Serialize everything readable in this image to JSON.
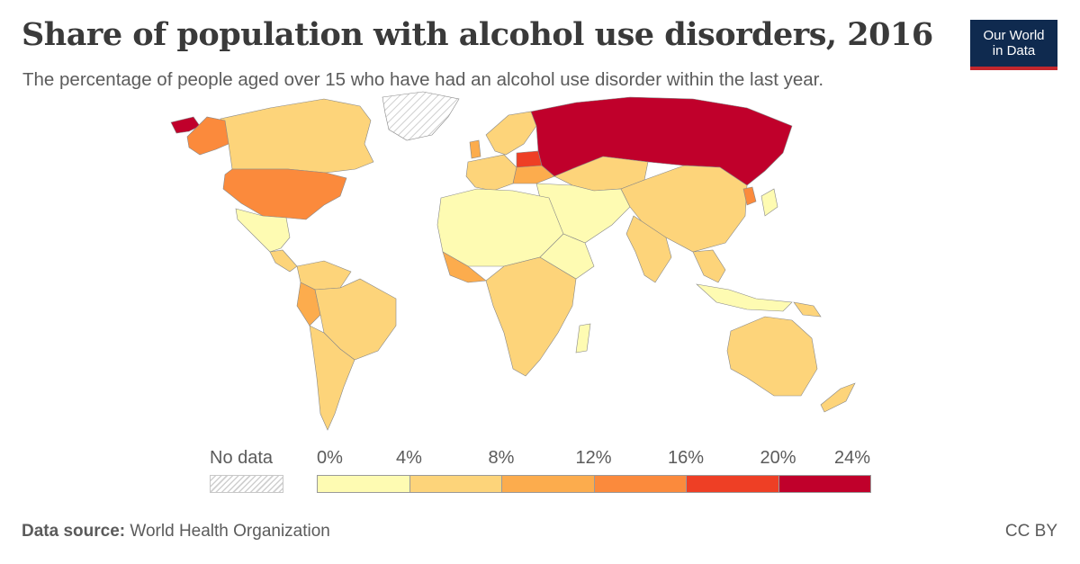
{
  "header": {
    "title": "Share of population with alcohol use disorders, 2016",
    "subtitle": "The percentage of people aged over 15 who have had an alcohol use disorder within the last year."
  },
  "logo": {
    "line1": "Our World",
    "line2": "in Data"
  },
  "legend": {
    "no_data_label": "No data",
    "ticks": [
      "0%",
      "4%",
      "8%",
      "12%",
      "16%",
      "20%",
      "24%"
    ],
    "bin_colors": [
      "#fefbb2",
      "#fdd47a",
      "#fcac4d",
      "#fb8a3c",
      "#ee3f25",
      "#c0002b"
    ]
  },
  "footer": {
    "source_label": "Data source:",
    "source_value": "World Health Organization",
    "license": "CC BY"
  }
}
